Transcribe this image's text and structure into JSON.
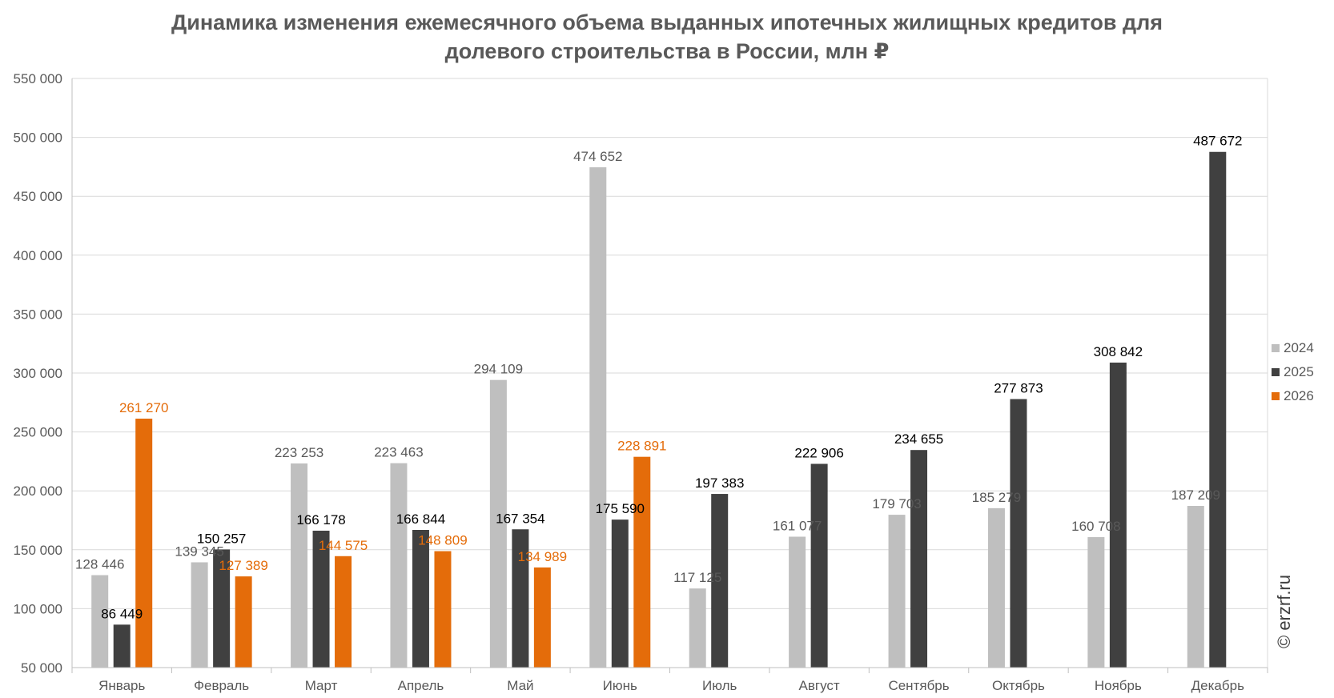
{
  "chart_data": {
    "type": "bar",
    "title_line1": "Динамика изменения ежемесячного объема выданных ипотечных жилищных кредитов для",
    "title_line2": "долевого строительства в России, млн ₽",
    "categories": [
      "Январь",
      "Февраль",
      "Март",
      "Апрель",
      "Май",
      "Июнь",
      "Июль",
      "Август",
      "Сентябрь",
      "Октябрь",
      "Ноябрь",
      "Декабрь"
    ],
    "series": [
      {
        "name": "2024",
        "color": "#bfbfbf",
        "label_color": "#595959",
        "values": [
          128446,
          139345,
          223253,
          223463,
          294109,
          474652,
          117125,
          161077,
          179703,
          185279,
          160708,
          187209
        ],
        "labels": [
          "128 446",
          "139 345",
          "223 253",
          "223 463",
          "294 109",
          "474 652",
          "117 125",
          "161 077",
          "179 703",
          "185 279",
          "160 708",
          "187 209"
        ]
      },
      {
        "name": "2025",
        "color": "#404040",
        "label_color": "#000000",
        "values": [
          86449,
          150257,
          166178,
          166844,
          167354,
          175590,
          197383,
          222906,
          234655,
          277873,
          308842,
          487672
        ],
        "labels": [
          "86 449",
          "150 257",
          "166 178",
          "166 844",
          "167 354",
          "175 590",
          "197 383",
          "222 906",
          "234 655",
          "277 873",
          "308 842",
          "487 672"
        ]
      },
      {
        "name": "2026",
        "color": "#e46c0a",
        "label_color": "#e46c0a",
        "values": [
          261270,
          127389,
          144575,
          148809,
          134989,
          228891,
          null,
          null,
          null,
          null,
          null,
          null
        ],
        "labels": [
          "261 270",
          "127 389",
          "144 575",
          "148 809",
          "134 989",
          "228 891",
          null,
          null,
          null,
          null,
          null,
          null
        ]
      }
    ],
    "ylim": [
      50000,
      550000
    ],
    "yticks": [
      50000,
      100000,
      150000,
      200000,
      250000,
      300000,
      350000,
      400000,
      450000,
      500000,
      550000
    ],
    "ytick_labels": [
      "50 000",
      "100 000",
      "150 000",
      "200 000",
      "250 000",
      "300 000",
      "350 000",
      "400 000",
      "450 000",
      "500 000",
      "550 000"
    ],
    "grid": true,
    "legend_position": "right"
  },
  "copyright": "© erzrf.ru"
}
